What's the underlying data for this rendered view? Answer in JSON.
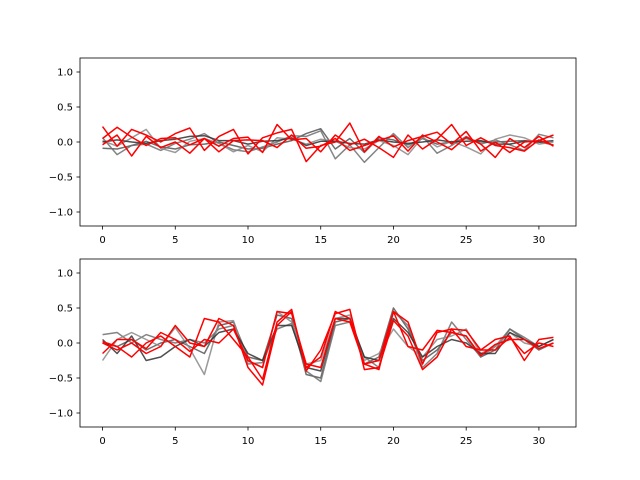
{
  "chart_data": [
    {
      "type": "line",
      "xlim": [
        -1.55,
        32.55
      ],
      "ylim": [
        -1.2,
        1.2
      ],
      "xticks": [
        0,
        5,
        10,
        15,
        20,
        25,
        30
      ],
      "xtick_labels": [
        "0",
        "5",
        "10",
        "15",
        "20",
        "25",
        "30"
      ],
      "yticks": [
        1.0,
        0.5,
        0.0,
        -0.5,
        -1.0
      ],
      "ytick_labels": [
        "1.0",
        "0.5",
        "0.0",
        "−0.5",
        "−1.0"
      ],
      "grid": false,
      "series": [
        {
          "color": "#555555",
          "values": [
            -0.09,
            -0.1,
            -0.05,
            0.01,
            -0.07,
            -0.1,
            -0.04,
            -0.03,
            0.0,
            -0.05,
            -0.1,
            -0.09,
            -0.03,
            0.02,
            0.12,
            0.19,
            -0.1,
            0.05,
            -0.15,
            0.06,
            0.03,
            -0.04,
            0.05,
            -0.03,
            0.0,
            0.05,
            0.0,
            0.0,
            0.01,
            0.02,
            0.0,
            -0.04
          ]
        },
        {
          "color": "#6e6e6e",
          "values": [
            0.06,
            -0.18,
            -0.05,
            -0.03,
            -0.12,
            -0.02,
            0.04,
            0.12,
            -0.02,
            -0.11,
            -0.14,
            -0.07,
            0.0,
            0.09,
            0.08,
            0.16,
            -0.24,
            -0.04,
            -0.29,
            -0.08,
            0.12,
            -0.08,
            0.08,
            -0.16,
            -0.05,
            0.08,
            -0.03,
            0.03,
            -0.04,
            -0.12,
            0.11,
            0.06
          ]
        },
        {
          "color": "#888888",
          "values": [
            0.02,
            -0.06,
            0.06,
            0.18,
            -0.09,
            -0.15,
            0.01,
            0.05,
            -0.02,
            -0.14,
            -0.05,
            -0.14,
            0.06,
            0.04,
            -0.03,
            0.04,
            0.01,
            -0.08,
            -0.1,
            0.02,
            -0.05,
            -0.18,
            0.07,
            -0.07,
            0.01,
            -0.07,
            -0.17,
            0.04,
            0.1,
            0.06,
            -0.03,
            0.0
          ]
        },
        {
          "color": "#303030",
          "values": [
            0.0,
            0.03,
            0.0,
            -0.02,
            0.02,
            0.04,
            0.08,
            0.09,
            0.02,
            0.02,
            -0.03,
            0.01,
            0.02,
            0.06,
            -0.05,
            0.01,
            0.01,
            -0.02,
            -0.03,
            0.03,
            0.0,
            -0.02,
            0.0,
            0.03,
            0.0,
            0.01,
            0.02,
            -0.03,
            -0.03,
            0.01,
            0.0,
            0.02
          ]
        },
        {
          "color": "#ff0000",
          "values": [
            0.22,
            -0.06,
            0.18,
            0.1,
            0.0,
            0.12,
            0.2,
            -0.12,
            0.08,
            0.18,
            -0.17,
            0.06,
            0.13,
            0.18,
            -0.28,
            -0.05,
            0.0,
            0.27,
            -0.14,
            0.08,
            -0.07,
            0.02,
            0.08,
            0.14,
            -0.03,
            0.15,
            -0.13,
            0.0,
            -0.15,
            0.0,
            0.02,
            0.1
          ]
        },
        {
          "color": "#ff0000",
          "values": [
            0.05,
            0.21,
            0.07,
            -0.05,
            0.05,
            0.06,
            -0.04,
            0.05,
            -0.06,
            0.05,
            0.07,
            -0.15,
            0.25,
            0.03,
            0.05,
            -0.14,
            0.1,
            -0.04,
            0.04,
            -0.08,
            -0.22,
            0.1,
            -0.1,
            0.04,
            0.25,
            -0.05,
            0.06,
            -0.05,
            -0.08,
            -0.13,
            0.03,
            -0.05
          ]
        },
        {
          "color": "#ff0000",
          "values": [
            -0.04,
            0.1,
            -0.2,
            0.08,
            -0.08,
            0.0,
            -0.16,
            0.05,
            -0.14,
            0.02,
            0.03,
            0.02,
            -0.08,
            0.1,
            -0.09,
            -0.06,
            0.05,
            -0.12,
            -0.05,
            0.02,
            0.09,
            -0.13,
            0.1,
            0.0,
            -0.11,
            0.07,
            -0.03,
            -0.22,
            0.05,
            -0.08,
            0.08,
            -0.06
          ]
        }
      ]
    },
    {
      "type": "line",
      "xlim": [
        -1.55,
        32.55
      ],
      "ylim": [
        -1.2,
        1.2
      ],
      "xticks": [
        0,
        5,
        10,
        15,
        20,
        25,
        30
      ],
      "xtick_labels": [
        "0",
        "5",
        "10",
        "15",
        "20",
        "25",
        "30"
      ],
      "yticks": [
        1.0,
        0.5,
        0.0,
        -0.5,
        -1.0
      ],
      "ytick_labels": [
        "1.0",
        "0.5",
        "0.0",
        "−0.5",
        "−1.0"
      ],
      "grid": false,
      "series": [
        {
          "color": "#555555",
          "values": [
            0.0,
            -0.05,
            0.05,
            -0.1,
            0.0,
            0.05,
            -0.05,
            -0.15,
            0.25,
            0.3,
            -0.2,
            -0.25,
            0.4,
            0.35,
            -0.45,
            -0.5,
            0.3,
            0.35,
            -0.3,
            -0.2,
            0.5,
            0.2,
            -0.25,
            -0.1,
            0.15,
            0.1,
            -0.2,
            -0.1,
            0.2,
            0.05,
            -0.1,
            0.0
          ]
        },
        {
          "color": "#6e6e6e",
          "values": [
            0.12,
            0.15,
            0.0,
            0.12,
            0.05,
            0.0,
            0.05,
            0.0,
            0.2,
            0.25,
            -0.3,
            -0.28,
            0.2,
            0.28,
            -0.4,
            -0.55,
            0.25,
            0.3,
            -0.2,
            -0.35,
            0.45,
            0.25,
            -0.35,
            -0.15,
            0.3,
            0.05,
            -0.2,
            -0.05,
            0.2,
            0.08,
            -0.05,
            0.05
          ]
        },
        {
          "color": "#888888",
          "values": [
            -0.25,
            0.05,
            0.15,
            0.05,
            -0.05,
            0.22,
            -0.08,
            -0.45,
            0.3,
            0.32,
            -0.26,
            -0.35,
            0.45,
            0.3,
            -0.3,
            -0.25,
            0.35,
            0.4,
            -0.25,
            -0.15,
            0.2,
            -0.05,
            -0.2,
            0.05,
            0.1,
            0.2,
            -0.15,
            -0.05,
            0.15,
            0.0,
            -0.05,
            0.05
          ]
        },
        {
          "color": "#303030",
          "values": [
            0.05,
            -0.15,
            0.1,
            -0.25,
            -0.2,
            -0.05,
            0.05,
            -0.05,
            0.15,
            0.2,
            -0.15,
            -0.25,
            0.25,
            0.25,
            -0.35,
            -0.4,
            0.35,
            0.35,
            -0.2,
            -0.25,
            0.35,
            0.15,
            -0.2,
            -0.05,
            0.05,
            0.0,
            -0.15,
            -0.15,
            0.15,
            0.05,
            -0.05,
            0.05
          ]
        },
        {
          "color": "#ff0000",
          "values": [
            0.0,
            -0.1,
            0.0,
            -0.15,
            -0.05,
            0.25,
            0.0,
            -0.05,
            0.35,
            0.25,
            -0.35,
            -0.6,
            0.25,
            0.45,
            -0.35,
            -0.2,
            0.45,
            0.35,
            -0.3,
            -0.25,
            0.45,
            0.3,
            -0.3,
            0.15,
            0.2,
            -0.05,
            -0.1,
            0.05,
            0.1,
            -0.25,
            0.05,
            0.08
          ]
        },
        {
          "color": "#ff0000",
          "values": [
            0.02,
            -0.05,
            -0.2,
            0.0,
            0.1,
            -0.05,
            -0.2,
            0.35,
            0.3,
            0.05,
            -0.2,
            -0.52,
            0.3,
            0.48,
            -0.4,
            -0.1,
            0.42,
            0.48,
            -0.38,
            -0.35,
            0.32,
            0.1,
            -0.38,
            -0.2,
            0.2,
            0.18,
            -0.1,
            -0.1,
            0.08,
            -0.15,
            0.0,
            -0.05
          ]
        },
        {
          "color": "#ff0000",
          "values": [
            -0.15,
            0.05,
            0.05,
            -0.08,
            0.15,
            0.05,
            -0.12,
            0.05,
            0.0,
            0.2,
            -0.25,
            -0.35,
            0.45,
            0.42,
            -0.3,
            -0.35,
            0.35,
            0.3,
            -0.3,
            -0.38,
            0.45,
            -0.05,
            -0.1,
            0.18,
            0.15,
            0.1,
            -0.18,
            -0.02,
            0.05,
            0.05,
            -0.08,
            0.0
          ]
        }
      ]
    }
  ]
}
